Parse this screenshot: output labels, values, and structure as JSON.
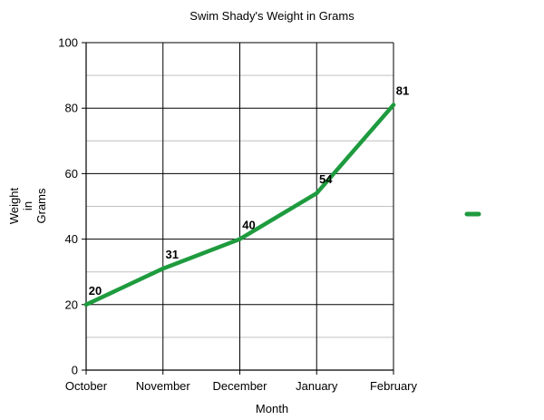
{
  "chart_data": {
    "type": "line",
    "title": "Swim Shady's Weight in Grams",
    "xlabel": "Month",
    "ylabel_lines": [
      "Weight",
      "in",
      "Grams"
    ],
    "categories": [
      "October",
      "November",
      "December",
      "January",
      "February"
    ],
    "series": [
      {
        "values": [
          20,
          31,
          40,
          54,
          81
        ],
        "color": "#1e9b3e"
      }
    ],
    "ylim": [
      0,
      100
    ],
    "y_ticks": [
      0,
      20,
      40,
      60,
      80,
      100
    ],
    "y_minor_step": 10,
    "grid": true,
    "data_labels": true,
    "legend": "right"
  }
}
